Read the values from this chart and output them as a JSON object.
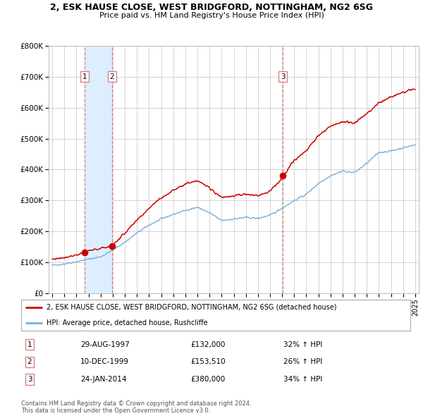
{
  "title_line1": "2, ESK HAUSE CLOSE, WEST BRIDGFORD, NOTTINGHAM, NG2 6SG",
  "title_line2": "Price paid vs. HM Land Registry's House Price Index (HPI)",
  "legend_label_red": "2, ESK HAUSE CLOSE, WEST BRIDGFORD, NOTTINGHAM, NG2 6SG (detached house)",
  "legend_label_blue": "HPI: Average price, detached house, Rushcliffe",
  "footnote1": "Contains HM Land Registry data © Crown copyright and database right 2024.",
  "footnote2": "This data is licensed under the Open Government Licence v3.0.",
  "transactions": [
    {
      "num": 1,
      "date": "29-AUG-1997",
      "price": 132000,
      "hpi_pct": "32% ↑ HPI",
      "x": 1997.66
    },
    {
      "num": 2,
      "date": "10-DEC-1999",
      "price": 153510,
      "hpi_pct": "26% ↑ HPI",
      "x": 1999.94
    },
    {
      "num": 3,
      "date": "24-JAN-2014",
      "price": 380000,
      "hpi_pct": "34% ↑ HPI",
      "x": 2014.07
    }
  ],
  "red_color": "#cc0000",
  "blue_color": "#7aaddb",
  "shade_color": "#ddeeff",
  "dashed_red": "#e08080",
  "ylim": [
    0,
    800000
  ],
  "xlim": [
    1994.7,
    2025.3
  ],
  "yticks": [
    0,
    100000,
    200000,
    300000,
    400000,
    500000,
    600000,
    700000,
    800000
  ],
  "ytick_labels": [
    "£0",
    "£100K",
    "£200K",
    "£300K",
    "£400K",
    "£500K",
    "£600K",
    "£700K",
    "£800K"
  ],
  "xtick_years": [
    1995,
    1996,
    1997,
    1998,
    1999,
    2000,
    2001,
    2002,
    2003,
    2004,
    2005,
    2006,
    2007,
    2008,
    2009,
    2010,
    2011,
    2012,
    2013,
    2014,
    2015,
    2016,
    2017,
    2018,
    2019,
    2020,
    2021,
    2022,
    2023,
    2024,
    2025
  ],
  "background_color": "#ffffff",
  "grid_color": "#cccccc",
  "hpi_anchors_x": [
    1995.0,
    1996.0,
    1997.0,
    1998.0,
    1999.0,
    2000.0,
    2001.0,
    2002.0,
    2003.0,
    2004.0,
    2005.0,
    2006.0,
    2007.0,
    2008.0,
    2009.0,
    2010.0,
    2011.0,
    2012.0,
    2013.0,
    2014.0,
    2015.0,
    2016.0,
    2017.0,
    2018.0,
    2019.0,
    2020.0,
    2021.0,
    2022.0,
    2023.0,
    2024.0,
    2025.0
  ],
  "hpi_anchors_y": [
    90000,
    95000,
    102000,
    110000,
    118000,
    140000,
    165000,
    195000,
    220000,
    240000,
    255000,
    268000,
    278000,
    260000,
    235000,
    240000,
    245000,
    242000,
    252000,
    275000,
    300000,
    320000,
    355000,
    380000,
    395000,
    390000,
    420000,
    455000,
    460000,
    470000,
    480000
  ],
  "red_anchors_x": [
    1995.0,
    1996.0,
    1997.0,
    1997.66,
    1998.0,
    1999.0,
    1999.94,
    2000.5,
    2001.5,
    2002.5,
    2003.5,
    2004.5,
    2005.5,
    2006.5,
    2007.0,
    2008.0,
    2009.0,
    2010.0,
    2011.0,
    2012.0,
    2013.0,
    2014.0,
    2014.07,
    2015.0,
    2016.0,
    2017.0,
    2018.0,
    2019.0,
    2020.0,
    2021.0,
    2022.0,
    2023.0,
    2024.0,
    2025.0
  ],
  "red_anchors_y": [
    110000,
    116000,
    124000,
    132000,
    137000,
    145000,
    153510,
    175000,
    215000,
    255000,
    295000,
    320000,
    345000,
    360000,
    365000,
    340000,
    310000,
    315000,
    320000,
    315000,
    330000,
    370000,
    380000,
    430000,
    460000,
    510000,
    540000,
    555000,
    550000,
    580000,
    615000,
    635000,
    650000,
    660000
  ]
}
